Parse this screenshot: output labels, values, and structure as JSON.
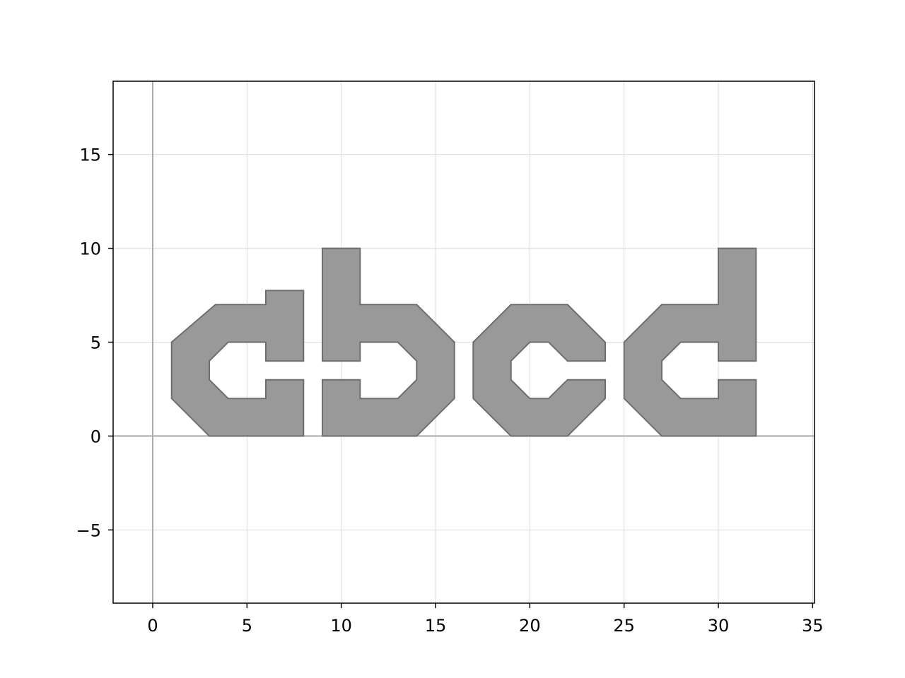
{
  "chart_data": {
    "type": "area",
    "xlim": [
      -2.1,
      35.1
    ],
    "ylim": [
      -8.9,
      18.9
    ],
    "x_ticks": [
      0,
      5,
      10,
      15,
      20,
      25,
      30,
      35
    ],
    "y_ticks": [
      -5,
      0,
      5,
      10,
      15
    ],
    "x_tick_labels": [
      "0",
      "5",
      "10",
      "15",
      "20",
      "25",
      "30",
      "35"
    ],
    "y_tick_labels": [
      "−5",
      "0",
      "5",
      "10",
      "15"
    ],
    "grid": true,
    "zero_lines": true,
    "fill_color": "#999999",
    "edge_color": "#6e6e6e",
    "grid_color": "#dcdcdc",
    "axis_line_color": "#aaaaaa",
    "shapes": [
      {
        "name": "c",
        "points": [
          [
            1,
            2
          ],
          [
            1,
            5
          ],
          [
            3.33,
            7
          ],
          [
            6,
            7
          ],
          [
            6,
            7.75
          ],
          [
            8,
            7.75
          ],
          [
            8,
            4
          ],
          [
            6,
            4
          ],
          [
            6,
            5
          ],
          [
            4,
            5
          ],
          [
            3,
            4
          ],
          [
            3,
            3
          ],
          [
            4,
            2
          ],
          [
            6,
            2
          ],
          [
            6,
            3
          ],
          [
            8,
            3
          ],
          [
            8,
            0
          ],
          [
            3,
            0
          ]
        ]
      },
      {
        "name": "b",
        "points": [
          [
            9,
            0
          ],
          [
            9,
            3
          ],
          [
            11,
            3
          ],
          [
            11,
            2
          ],
          [
            13,
            2
          ],
          [
            14,
            3
          ],
          [
            14,
            4
          ],
          [
            13,
            5
          ],
          [
            11,
            5
          ],
          [
            11,
            4
          ],
          [
            9,
            4
          ],
          [
            9,
            10
          ],
          [
            11,
            10
          ],
          [
            11,
            7
          ],
          [
            14,
            7
          ],
          [
            16,
            5
          ],
          [
            16,
            2
          ],
          [
            14,
            0
          ]
        ]
      },
      {
        "name": "c",
        "points": [
          [
            17,
            2
          ],
          [
            17,
            5
          ],
          [
            19,
            7
          ],
          [
            22,
            7
          ],
          [
            24,
            5
          ],
          [
            24,
            4
          ],
          [
            22,
            4
          ],
          [
            21,
            5
          ],
          [
            20,
            5
          ],
          [
            19,
            4
          ],
          [
            19,
            3
          ],
          [
            20,
            2
          ],
          [
            21,
            2
          ],
          [
            22,
            3
          ],
          [
            24,
            3
          ],
          [
            24,
            2
          ],
          [
            22,
            0
          ],
          [
            19,
            0
          ]
        ]
      },
      {
        "name": "d",
        "points": [
          [
            25,
            2
          ],
          [
            25,
            5
          ],
          [
            27,
            7
          ],
          [
            30,
            7
          ],
          [
            30,
            10
          ],
          [
            32,
            10
          ],
          [
            32,
            4
          ],
          [
            30,
            4
          ],
          [
            30,
            5
          ],
          [
            28,
            5
          ],
          [
            27,
            4
          ],
          [
            27,
            3
          ],
          [
            28,
            2
          ],
          [
            30,
            2
          ],
          [
            30,
            3
          ],
          [
            32,
            3
          ],
          [
            32,
            0
          ],
          [
            27,
            0
          ]
        ]
      }
    ]
  }
}
